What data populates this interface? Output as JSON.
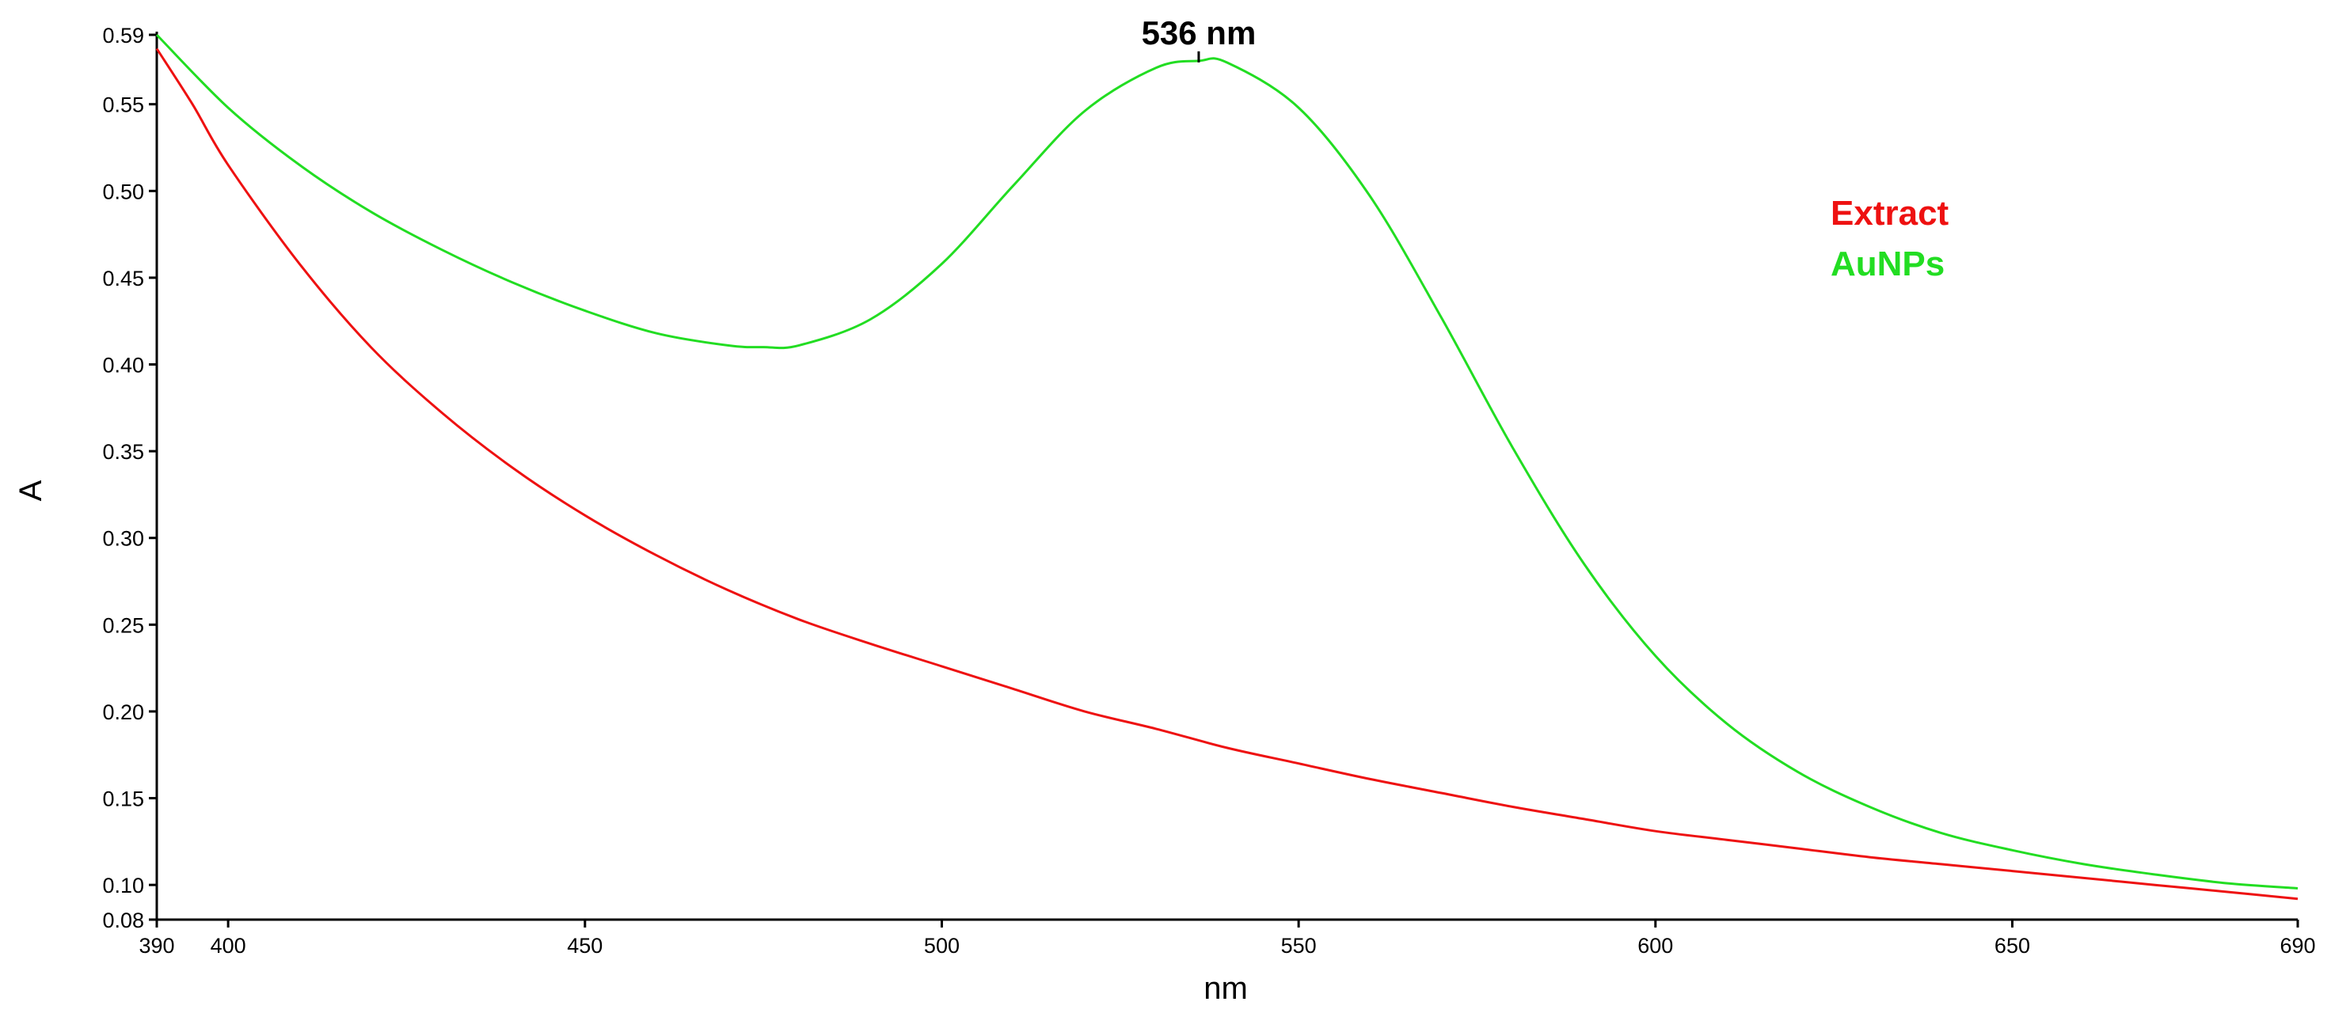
{
  "chart_data": {
    "type": "line",
    "xlabel": "nm",
    "ylabel": "A",
    "xlim": [
      390,
      690
    ],
    "ylim": [
      0.08,
      0.59
    ],
    "x_ticks": [
      390,
      400,
      450,
      500,
      550,
      600,
      650,
      690
    ],
    "y_ticks": [
      0.08,
      0.1,
      0.15,
      0.2,
      0.25,
      0.3,
      0.35,
      0.4,
      0.45,
      0.5,
      0.55,
      0.59
    ],
    "x_tick_labels": [
      "390",
      "400",
      "450",
      "500",
      "550",
      "600",
      "650",
      "690"
    ],
    "y_tick_labels": [
      "0.08",
      "0.10",
      "0.15",
      "0.20",
      "0.25",
      "0.30",
      "0.35",
      "0.40",
      "0.45",
      "0.50",
      "0.55",
      "0.59"
    ],
    "annotation": {
      "text": "536 nm",
      "x": 536,
      "y": 0.575
    },
    "legend_position": "top-right",
    "grid": false,
    "series": [
      {
        "name": "Extract",
        "color": "#ee1111",
        "x": [
          390,
          395,
          400,
          410,
          420,
          430,
          440,
          450,
          460,
          470,
          480,
          490,
          500,
          510,
          520,
          530,
          540,
          550,
          560,
          570,
          580,
          590,
          600,
          610,
          620,
          630,
          640,
          650,
          660,
          670,
          680,
          690
        ],
        "y": [
          0.582,
          0.55,
          0.515,
          0.458,
          0.41,
          0.372,
          0.34,
          0.313,
          0.29,
          0.27,
          0.253,
          0.239,
          0.226,
          0.213,
          0.2,
          0.19,
          0.179,
          0.17,
          0.161,
          0.153,
          0.145,
          0.138,
          0.131,
          0.126,
          0.121,
          0.116,
          0.112,
          0.108,
          0.104,
          0.1,
          0.096,
          0.092
        ]
      },
      {
        "name": "AuNPs",
        "color": "#22dd22",
        "x": [
          390,
          400,
          410,
          420,
          430,
          440,
          450,
          460,
          470,
          475,
          480,
          490,
          500,
          510,
          520,
          530,
          536,
          540,
          550,
          560,
          570,
          580,
          590,
          600,
          610,
          620,
          630,
          640,
          650,
          660,
          670,
          680,
          690
        ],
        "y": [
          0.59,
          0.548,
          0.515,
          0.488,
          0.466,
          0.447,
          0.431,
          0.418,
          0.411,
          0.41,
          0.411,
          0.426,
          0.458,
          0.503,
          0.546,
          0.571,
          0.575,
          0.574,
          0.548,
          0.497,
          0.427,
          0.352,
          0.285,
          0.232,
          0.193,
          0.165,
          0.145,
          0.13,
          0.12,
          0.112,
          0.106,
          0.101,
          0.098
        ]
      }
    ]
  }
}
